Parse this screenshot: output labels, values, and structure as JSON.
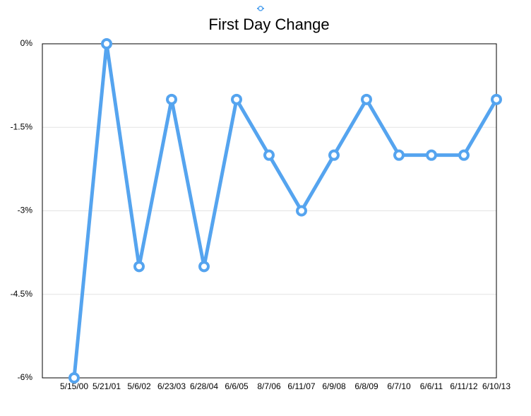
{
  "chart_data": {
    "type": "line",
    "title": "First Day Change",
    "categories": [
      "5/15/00",
      "5/21/01",
      "5/6/02",
      "6/23/03",
      "6/28/04",
      "6/6/05",
      "8/7/06",
      "6/11/07",
      "6/9/08",
      "6/8/09",
      "6/7/10",
      "6/6/11",
      "6/11/12",
      "6/10/13"
    ],
    "series": [
      {
        "color": "#55a4ef",
        "values": [
          -6,
          0,
          -4,
          -1,
          -4,
          -1,
          -2,
          -3,
          -2,
          -1,
          -2,
          -2,
          -2,
          -1
        ]
      }
    ],
    "ylim": [
      -6,
      0
    ],
    "yticks": [
      {
        "value": 0,
        "label": "0%"
      },
      {
        "value": -1.5,
        "label": "-1.5%"
      },
      {
        "value": -3,
        "label": "-3%"
      },
      {
        "value": -4.5,
        "label": "-4.5%"
      },
      {
        "value": -6,
        "label": "-6%"
      }
    ],
    "grid": true
  }
}
